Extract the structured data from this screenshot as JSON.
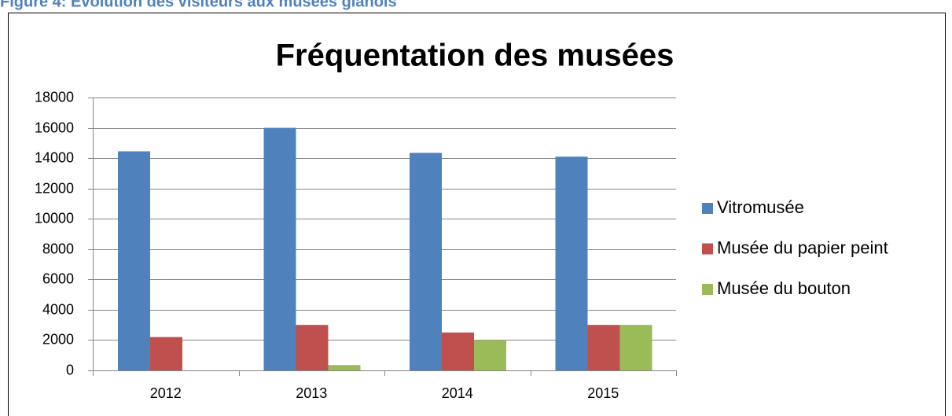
{
  "caption": "Figure 4: Evolution des visiteurs aux musées glanois",
  "chart_data": {
    "type": "bar",
    "title": "Fréquentation des musées",
    "categories": [
      "2012",
      "2013",
      "2014",
      "2015"
    ],
    "series": [
      {
        "name": "Vitromusée",
        "color": "#4f81bd",
        "values": [
          14450,
          16000,
          14350,
          14100
        ]
      },
      {
        "name": "Musée du papier peint",
        "color": "#c0504d",
        "values": [
          2200,
          3000,
          2500,
          3000
        ]
      },
      {
        "name": "Musée du bouton",
        "color": "#9bbb59",
        "values": [
          0,
          350,
          2000,
          3000
        ]
      }
    ],
    "ylim": [
      0,
      18000
    ],
    "yticks": [
      0,
      2000,
      4000,
      6000,
      8000,
      10000,
      12000,
      14000,
      16000,
      18000
    ],
    "grid": true,
    "legend": "right"
  }
}
